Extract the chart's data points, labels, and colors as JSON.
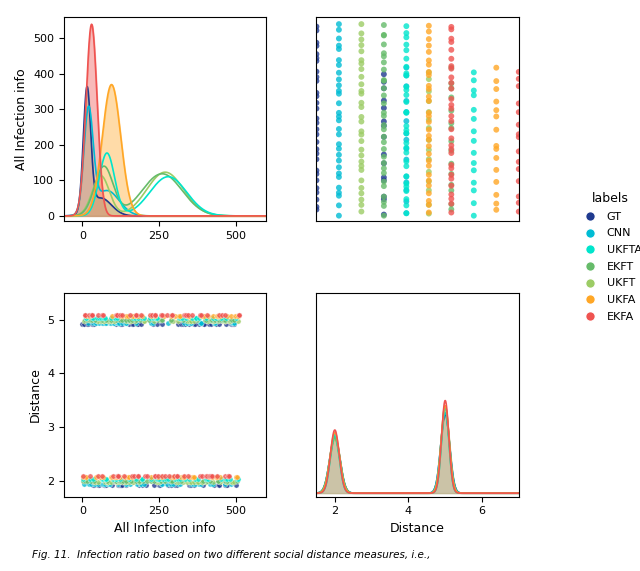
{
  "colors": {
    "GT": "#1f3a8f",
    "CNN": "#00bcd4",
    "UKFTA": "#00e5cc",
    "EKFT": "#66bb6a",
    "UKFT": "#9ccc65",
    "UKFA": "#ffa726",
    "EKFA": "#ef5350"
  },
  "fill_color": "#b5aa82",
  "axis_label_fontsize": 9,
  "tick_fontsize": 8,
  "legend_title": "labels",
  "legend_labels": [
    "GT",
    "CNN",
    "UKFTA",
    "EKFT",
    "UKFT",
    "UKFA",
    "EKFA"
  ],
  "xlabel_bottom": "All Infection info",
  "ylabel_left": "Distance",
  "xlabel_top_left": "All Infection info",
  "xlabel_bottom_right": "Distance"
}
